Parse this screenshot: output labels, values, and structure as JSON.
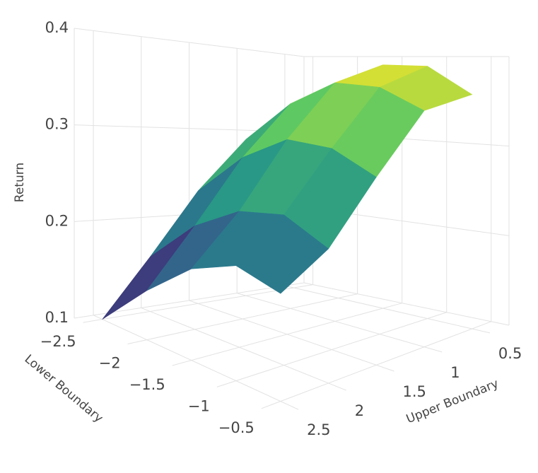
{
  "chart_data": {
    "type": "surface",
    "x_label": "Lower Boundary",
    "y_label": "Upper Boundary",
    "z_label": "Return",
    "x": [
      -2.5,
      -2,
      -1.5,
      -1,
      -0.5
    ],
    "y": [
      0.5,
      1,
      1.5,
      2,
      2.5
    ],
    "z": [
      [
        0.31,
        0.36,
        0.39,
        0.39,
        0.36
      ],
      [
        0.29,
        0.34,
        0.37,
        0.37,
        0.35
      ],
      [
        0.23,
        0.28,
        0.31,
        0.31,
        0.29
      ],
      [
        0.16,
        0.21,
        0.24,
        0.25,
        0.23
      ],
      [
        0.1,
        0.15,
        0.19,
        0.21,
        0.2
      ]
    ],
    "xlim": [
      -2.6,
      -0.3
    ],
    "ylim": [
      0.3,
      2.7
    ],
    "zlim": [
      0.1,
      0.4
    ],
    "xticks": [
      {
        "value": -2.5,
        "label": "−2.5"
      },
      {
        "value": -2,
        "label": "−2"
      },
      {
        "value": -1.5,
        "label": "−1.5"
      },
      {
        "value": -1,
        "label": "−1"
      },
      {
        "value": -0.5,
        "label": "−0.5"
      }
    ],
    "yticks": [
      0.5,
      1,
      1.5,
      2,
      2.5
    ],
    "zticks": [
      0.1,
      0.2,
      0.3,
      0.4
    ],
    "colorscale": [
      "#440154",
      "#3b528b",
      "#21918c",
      "#5ec962",
      "#fde725"
    ],
    "grid": true
  }
}
